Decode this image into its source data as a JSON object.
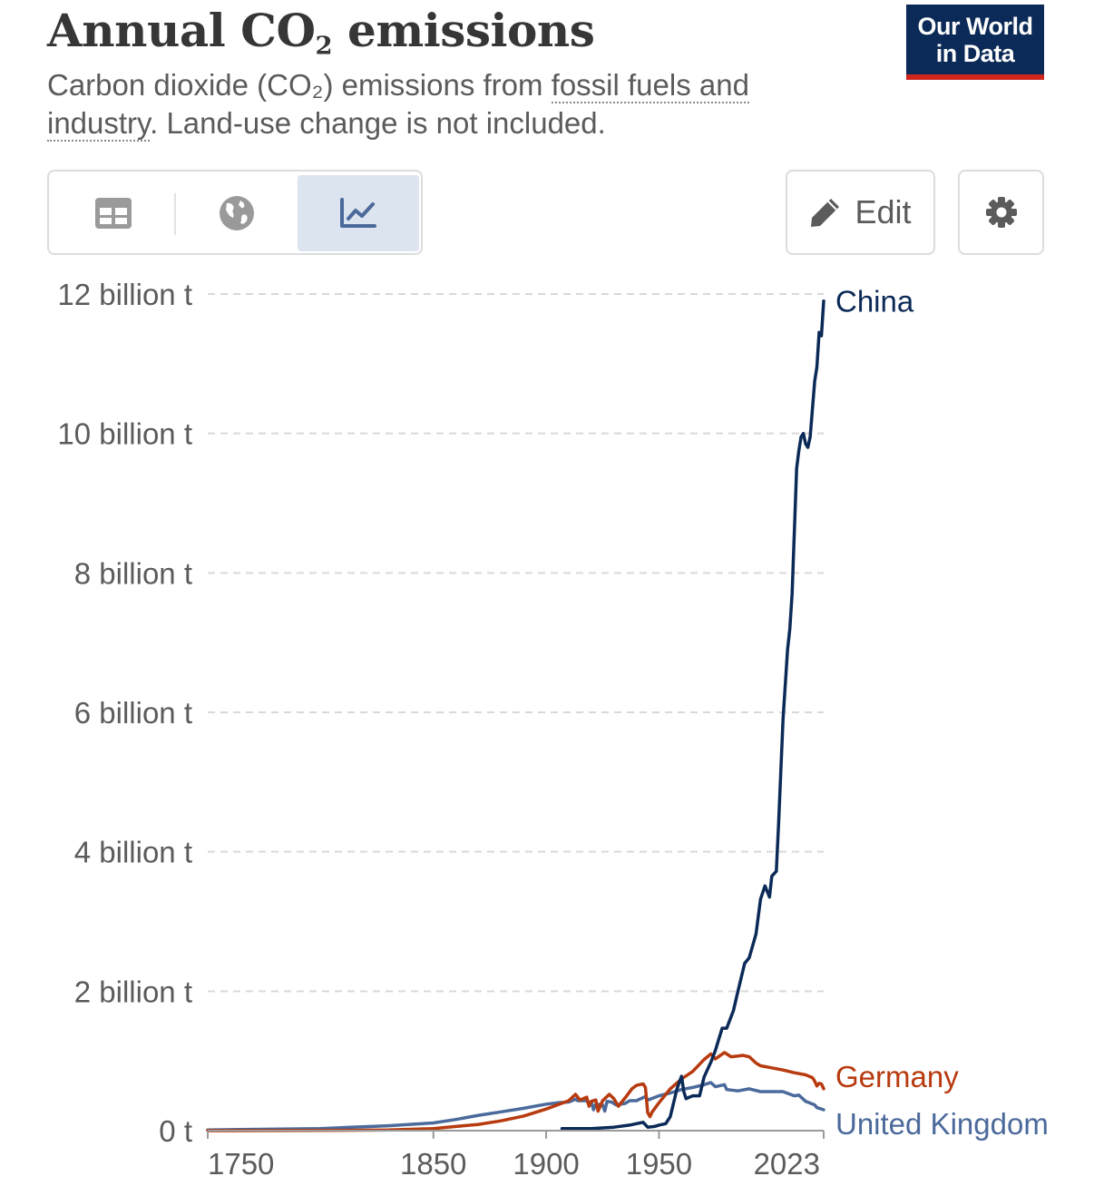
{
  "header": {
    "title_main": "Annual CO",
    "title_sub": "2",
    "title_end": " emissions",
    "subtitle_pre": "Carbon dioxide (CO₂) emissions from ",
    "subtitle_link": "fossil fuels and industry",
    "subtitle_post": ". Land-use change is not included.",
    "logo_line1": "Our World",
    "logo_line2": "in Data"
  },
  "toolbar": {
    "tabs": [
      "table",
      "map",
      "chart"
    ],
    "active_tab": "chart",
    "edit_label": "Edit",
    "icons": {
      "table": "table-icon",
      "map": "globe-icon",
      "chart": "line-chart-icon",
      "edit": "pencil-icon",
      "settings": "gear-icon"
    }
  },
  "colors": {
    "China": "#0b2a57",
    "Germany": "#b83a0f",
    "United Kingdom": "#4b6a9b",
    "grid": "#d9d9d9",
    "active_tab_bg": "#dbe4ef",
    "logo_bg": "#0b2a57",
    "logo_bar": "#ce261e"
  },
  "chart_data": {
    "type": "line",
    "ylim": [
      0,
      12
    ],
    "ytick_values": [
      0,
      2,
      4,
      6,
      8,
      10,
      12
    ],
    "ytick_labels": [
      "0 t",
      "2 billion t",
      "4 billion t",
      "6 billion t",
      "8 billion t",
      "10 billion t",
      "12 billion t"
    ],
    "xlim": [
      1750,
      2023
    ],
    "xtick_values": [
      1750,
      1850,
      1900,
      1950,
      2023
    ],
    "xtick_labels": [
      "1750",
      "1850",
      "1900",
      "1950",
      "2023"
    ],
    "grid": true,
    "legend": "inline-right",
    "series": [
      {
        "name": "China",
        "x": [
          1907,
          1920,
          1930,
          1937,
          1940,
          1943,
          1945,
          1948,
          1950,
          1953,
          1955,
          1958,
          1960,
          1961,
          1962,
          1965,
          1968,
          1970,
          1973,
          1975,
          1978,
          1980,
          1983,
          1985,
          1988,
          1990,
          1993,
          1995,
          1997,
          1999,
          2000,
          2002,
          2003,
          2005,
          2007,
          2008,
          2009,
          2010,
          2011,
          2012,
          2013,
          2014,
          2015,
          2016,
          2017,
          2018,
          2019,
          2020,
          2021,
          2022,
          2023
        ],
        "y": [
          0.03,
          0.03,
          0.05,
          0.08,
          0.1,
          0.12,
          0.05,
          0.06,
          0.08,
          0.1,
          0.2,
          0.6,
          0.78,
          0.56,
          0.46,
          0.5,
          0.5,
          0.77,
          0.98,
          1.15,
          1.47,
          1.47,
          1.72,
          2.0,
          2.4,
          2.48,
          2.82,
          3.32,
          3.51,
          3.35,
          3.65,
          3.72,
          4.4,
          5.9,
          6.9,
          7.2,
          7.7,
          8.6,
          9.5,
          9.75,
          9.95,
          10.0,
          9.85,
          9.8,
          9.95,
          10.35,
          10.75,
          10.95,
          11.45,
          11.4,
          11.9
        ]
      },
      {
        "name": "Germany",
        "x": [
          1750,
          1800,
          1830,
          1850,
          1860,
          1870,
          1880,
          1890,
          1900,
          1905,
          1910,
          1913,
          1915,
          1918,
          1919,
          1920,
          1922,
          1923,
          1925,
          1928,
          1930,
          1932,
          1935,
          1938,
          1940,
          1943,
          1944,
          1945,
          1946,
          1947,
          1950,
          1955,
          1960,
          1965,
          1970,
          1973,
          1975,
          1979,
          1982,
          1985,
          1987,
          1990,
          1993,
          1995,
          2000,
          2005,
          2010,
          2015,
          2018,
          2019,
          2020,
          2021,
          2022,
          2023
        ],
        "y": [
          0.0,
          0.002,
          0.01,
          0.03,
          0.06,
          0.09,
          0.14,
          0.21,
          0.31,
          0.37,
          0.43,
          0.52,
          0.44,
          0.48,
          0.35,
          0.42,
          0.44,
          0.28,
          0.43,
          0.52,
          0.46,
          0.35,
          0.47,
          0.6,
          0.65,
          0.67,
          0.62,
          0.26,
          0.2,
          0.27,
          0.4,
          0.6,
          0.74,
          0.85,
          1.02,
          1.1,
          1.03,
          1.12,
          1.06,
          1.07,
          1.08,
          1.06,
          0.97,
          0.93,
          0.9,
          0.87,
          0.83,
          0.8,
          0.76,
          0.71,
          0.64,
          0.68,
          0.67,
          0.6
        ]
      },
      {
        "name": "United Kingdom",
        "x": [
          1750,
          1800,
          1830,
          1850,
          1860,
          1870,
          1880,
          1890,
          1900,
          1905,
          1910,
          1913,
          1914,
          1918,
          1919,
          1920,
          1921,
          1922,
          1925,
          1926,
          1927,
          1929,
          1931,
          1935,
          1937,
          1940,
          1944,
          1945,
          1946,
          1950,
          1955,
          1960,
          1965,
          1970,
          1973,
          1975,
          1979,
          1980,
          1985,
          1990,
          1995,
          2000,
          2005,
          2010,
          2012,
          2015,
          2019,
          2020,
          2023
        ],
        "y": [
          0.01,
          0.03,
          0.07,
          0.11,
          0.16,
          0.22,
          0.27,
          0.32,
          0.38,
          0.4,
          0.41,
          0.45,
          0.43,
          0.43,
          0.38,
          0.42,
          0.3,
          0.38,
          0.37,
          0.28,
          0.42,
          0.41,
          0.37,
          0.39,
          0.43,
          0.43,
          0.49,
          0.44,
          0.45,
          0.5,
          0.54,
          0.59,
          0.62,
          0.66,
          0.69,
          0.63,
          0.66,
          0.59,
          0.57,
          0.6,
          0.56,
          0.56,
          0.56,
          0.5,
          0.51,
          0.42,
          0.37,
          0.33,
          0.3
        ]
      }
    ]
  }
}
